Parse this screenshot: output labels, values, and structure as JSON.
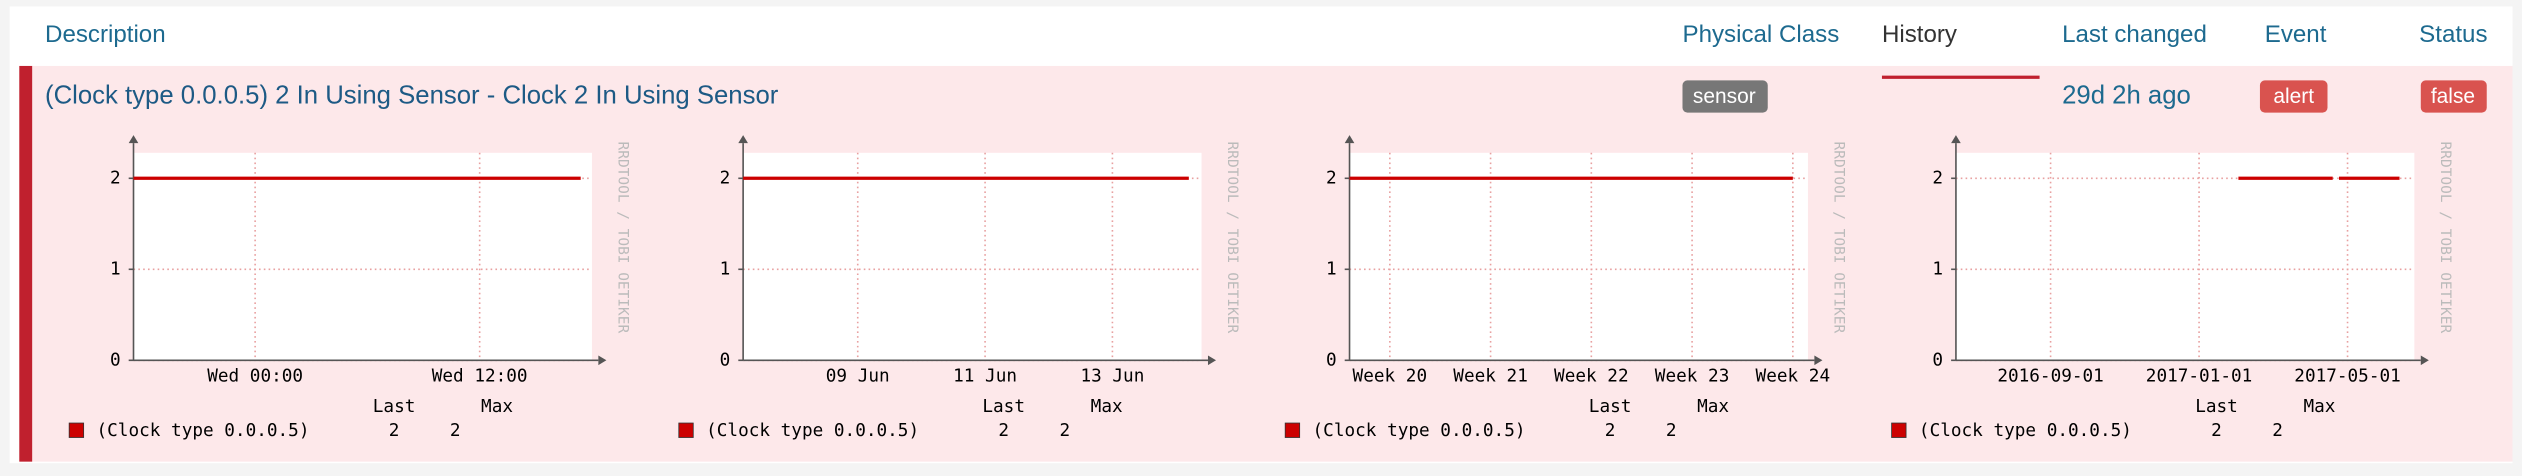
{
  "header": {
    "columns": [
      "Description",
      "Physical Class",
      "History",
      "Last changed",
      "Event",
      "Status"
    ]
  },
  "row": {
    "description": "(Clock type 0.0.0.5) 2 In Using Sensor - Clock 2 In Using Sensor",
    "physical_class": "sensor",
    "last_changed": "29d 2h ago",
    "event": "alert",
    "status": "false"
  },
  "graphs": [
    {
      "type": "line",
      "xlim": [
        -6.5,
        18
      ],
      "xticks": [
        {
          "value": 0,
          "label": "Wed 00:00"
        },
        {
          "value": 12,
          "label": "Wed 12:00"
        }
      ],
      "ylim": [
        0,
        2.28
      ],
      "yticks": [
        0,
        1,
        2
      ],
      "grid": true,
      "watermark": "RRDTOOL / TOBI OETIKER",
      "series": [
        {
          "name": "(Clock type 0.0.0.5)",
          "color": "#cc0000",
          "x": [
            -6.5,
            17.4
          ],
          "values": [
            2,
            2
          ]
        }
      ],
      "legend": {
        "headers": [
          "Last",
          "Max"
        ],
        "last": 2,
        "max": 2
      }
    },
    {
      "type": "line",
      "xlim": [
        7.2,
        14.4
      ],
      "xticks": [
        {
          "value": 9,
          "label": "09 Jun"
        },
        {
          "value": 11,
          "label": "11 Jun"
        },
        {
          "value": 13,
          "label": "13 Jun"
        }
      ],
      "ylim": [
        0,
        2.28
      ],
      "yticks": [
        0,
        1,
        2
      ],
      "grid": true,
      "watermark": "RRDTOOL / TOBI OETIKER",
      "series": [
        {
          "name": "(Clock type 0.0.0.5)",
          "color": "#cc0000",
          "x": [
            7.2,
            14.2
          ],
          "values": [
            2,
            2
          ]
        }
      ],
      "legend": {
        "headers": [
          "Last",
          "Max"
        ],
        "last": 2,
        "max": 2
      }
    },
    {
      "type": "line",
      "xlim": [
        19.6,
        24.15
      ],
      "xticks": [
        {
          "value": 20,
          "label": "Week 20"
        },
        {
          "value": 21,
          "label": "Week 21"
        },
        {
          "value": 22,
          "label": "Week 22"
        },
        {
          "value": 23,
          "label": "Week 23"
        },
        {
          "value": 24,
          "label": "Week 24"
        }
      ],
      "ylim": [
        0,
        2.28
      ],
      "yticks": [
        0,
        1,
        2
      ],
      "grid": true,
      "watermark": "RRDTOOL / TOBI OETIKER",
      "series": [
        {
          "name": "(Clock type 0.0.0.5)",
          "color": "#cc0000",
          "x": [
            19.6,
            24.0
          ],
          "values": [
            2,
            2
          ]
        }
      ],
      "legend": {
        "headers": [
          "Last",
          "Max"
        ],
        "last": 2,
        "max": 2
      }
    },
    {
      "type": "line",
      "xlim": [
        -2.55,
        9.8
      ],
      "xticks": [
        {
          "value": 0,
          "label": "2016-09-01"
        },
        {
          "value": 4,
          "label": "2017-01-01"
        },
        {
          "value": 8,
          "label": "2017-05-01"
        }
      ],
      "ylim": [
        0,
        2.28
      ],
      "yticks": [
        0,
        1,
        2
      ],
      "grid": true,
      "watermark": "RRDTOOL / TOBI OETIKER",
      "series": [
        {
          "name": "(Clock type 0.0.0.5)",
          "color": "#cc0000",
          "x": [
            5.06,
            7.6,
            null,
            7.77,
            9.4
          ],
          "values": [
            2,
            2,
            null,
            2,
            2
          ]
        }
      ],
      "legend": {
        "headers": [
          "Last",
          "Max"
        ],
        "last": 2,
        "max": 2
      }
    }
  ]
}
